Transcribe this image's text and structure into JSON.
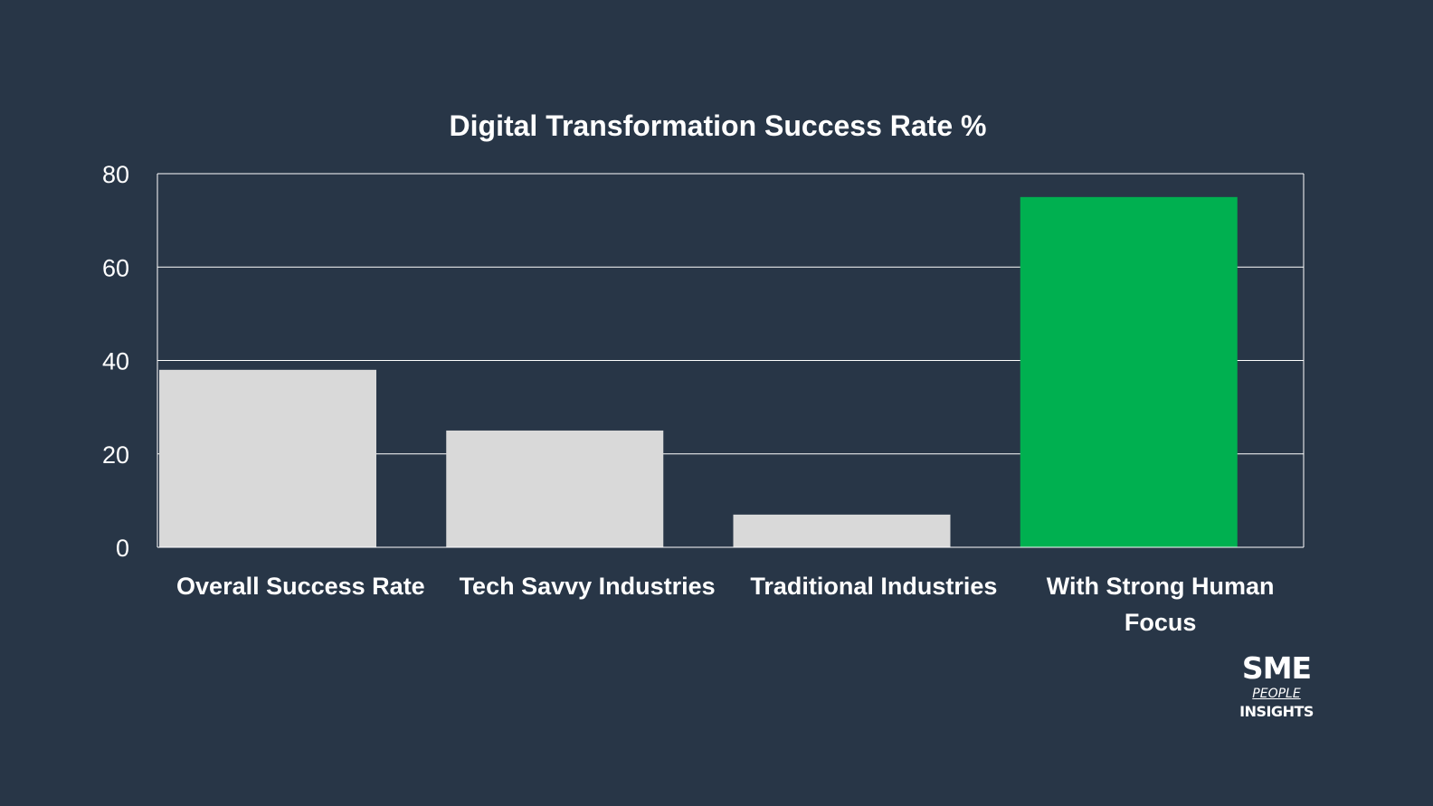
{
  "colors": {
    "background": "#283647",
    "default_bar": "#d9d9d9",
    "highlight_bar": "#00b050",
    "grid": "#ffffff",
    "text": "#ffffff"
  },
  "chart_data": {
    "type": "bar",
    "title": "Digital Transformation Success Rate %",
    "xlabel": "",
    "ylabel": "",
    "ylim": [
      0,
      80
    ],
    "yticks": [
      0,
      20,
      40,
      60,
      80
    ],
    "grid": true,
    "legend": "none",
    "categories": [
      "Overall Success Rate",
      "Tech Savvy Industries",
      "Traditional Industries",
      "With Strong Human Focus"
    ],
    "values": [
      38,
      25,
      7,
      75
    ],
    "highlight_index": 3
  },
  "logo": {
    "main": "SME",
    "sub": "PEOPLE",
    "sub2": "INSIGHTS"
  }
}
